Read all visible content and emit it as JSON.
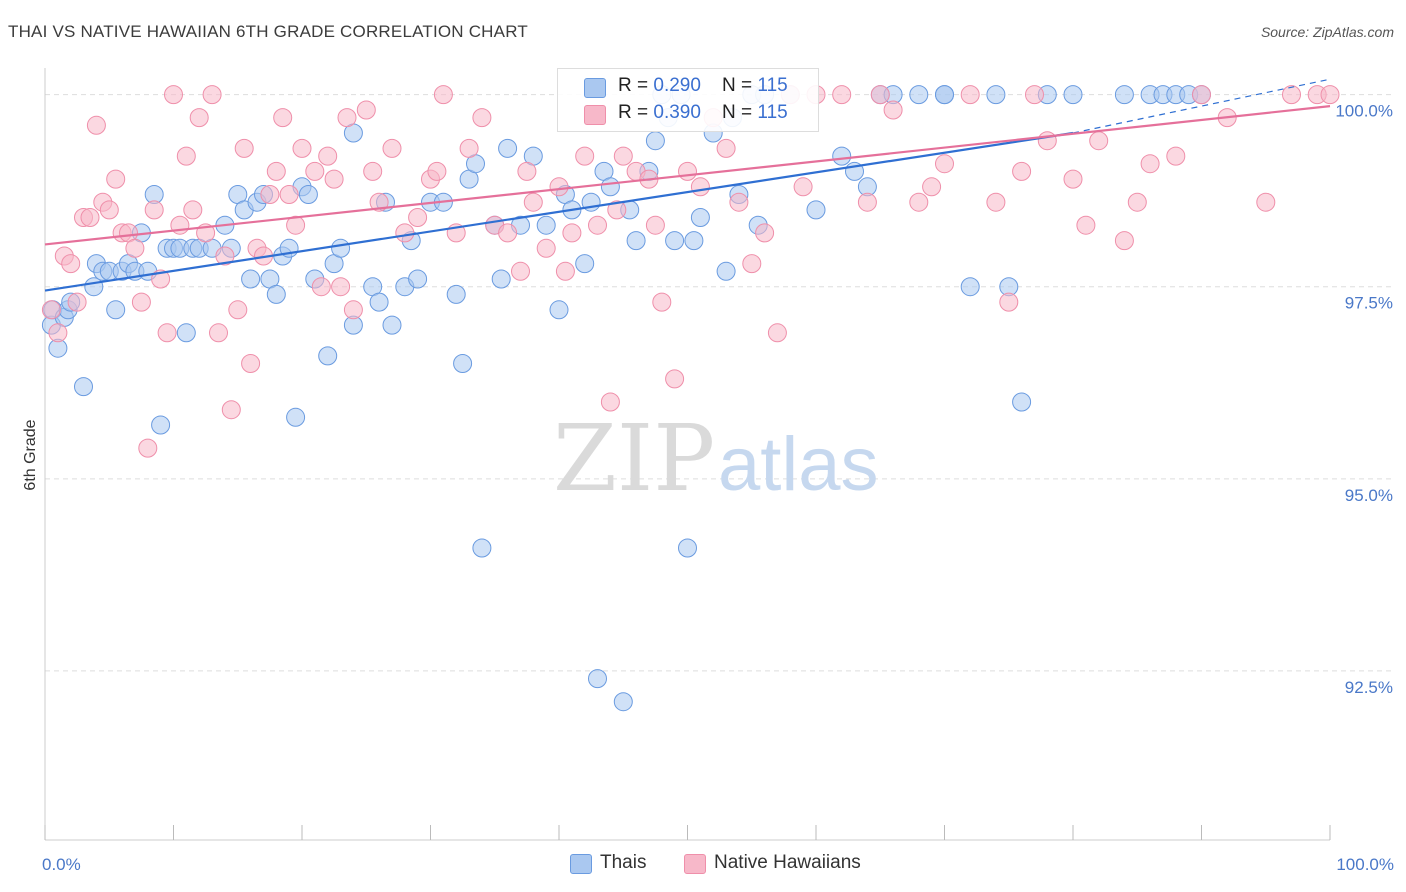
{
  "title": "THAI VS NATIVE HAWAIIAN 6TH GRADE CORRELATION CHART",
  "source": "Source: ZipAtlas.com",
  "watermark": {
    "zip": "ZIP",
    "atlas": "atlas"
  },
  "colors": {
    "thais_fill": "#aac8f0",
    "thais_stroke": "#6a9be0",
    "thais_line": "#2f6fd2",
    "hawaiians_fill": "#f7b8c9",
    "hawaiians_stroke": "#ef8faa",
    "hawaiians_line": "#e5709a",
    "grid": "#dddddd",
    "axis_text": "#4a78c8"
  },
  "legend_top": {
    "thais": {
      "r_label": "R = ",
      "r_value": "0.290",
      "n_label": "N = ",
      "n_value": "115"
    },
    "hawaiians": {
      "r_label": "R = ",
      "r_value": "0.390",
      "n_label": "N = ",
      "n_value": "115"
    }
  },
  "legend_bottom": {
    "thais": "Thais",
    "hawaiians": "Native Hawaiians"
  },
  "chart_data": {
    "type": "scatter",
    "title": "THAI VS NATIVE HAWAIIAN 6TH GRADE CORRELATION CHART",
    "xlabel": "",
    "ylabel": "6th Grade",
    "xlim": [
      0,
      100
    ],
    "ylim": [
      90.3,
      100.45
    ],
    "x_tick_labels": {
      "left": "0.0%",
      "right": "100.0%"
    },
    "y_ticks": [
      {
        "value": 100.0,
        "label": "100.0%"
      },
      {
        "value": 97.5,
        "label": "97.5%"
      },
      {
        "value": 95.0,
        "label": "95.0%"
      },
      {
        "value": 92.5,
        "label": "92.5%"
      }
    ],
    "grid": true,
    "series": [
      {
        "name": "Thais",
        "r": 0.29,
        "n": 115,
        "trend": {
          "x0": 0,
          "y0": 97.45,
          "x1": 80,
          "y1": 99.5,
          "dashed_to_x": 100,
          "dashed_to_y": 100.2
        },
        "points": [
          [
            0.5,
            97.0
          ],
          [
            0.6,
            97.2
          ],
          [
            1.0,
            96.7
          ],
          [
            1.5,
            97.1
          ],
          [
            1.8,
            97.2
          ],
          [
            2.0,
            97.3
          ],
          [
            3.0,
            96.2
          ],
          [
            3.8,
            97.5
          ],
          [
            4.0,
            97.8
          ],
          [
            4.5,
            97.7
          ],
          [
            5.0,
            97.7
          ],
          [
            5.5,
            97.2
          ],
          [
            6.0,
            97.7
          ],
          [
            6.5,
            97.8
          ],
          [
            7.0,
            97.7
          ],
          [
            7.5,
            98.2
          ],
          [
            8.0,
            97.7
          ],
          [
            8.5,
            98.7
          ],
          [
            9.0,
            95.7
          ],
          [
            9.5,
            98.0
          ],
          [
            10.0,
            98.0
          ],
          [
            10.5,
            98.0
          ],
          [
            11.0,
            96.9
          ],
          [
            11.5,
            98.0
          ],
          [
            12.0,
            98.0
          ],
          [
            13.0,
            98.0
          ],
          [
            14.0,
            98.3
          ],
          [
            14.5,
            98.0
          ],
          [
            15.0,
            98.7
          ],
          [
            15.5,
            98.5
          ],
          [
            16.0,
            97.6
          ],
          [
            16.5,
            98.6
          ],
          [
            17.0,
            98.7
          ],
          [
            17.5,
            97.6
          ],
          [
            18.0,
            97.4
          ],
          [
            18.5,
            97.9
          ],
          [
            19.0,
            98.0
          ],
          [
            19.5,
            95.8
          ],
          [
            20.0,
            98.8
          ],
          [
            20.5,
            98.7
          ],
          [
            21.0,
            97.6
          ],
          [
            22.0,
            96.6
          ],
          [
            22.5,
            97.8
          ],
          [
            23.0,
            98.0
          ],
          [
            24.0,
            97.0
          ],
          [
            24.0,
            99.5
          ],
          [
            25.5,
            97.5
          ],
          [
            26.0,
            97.3
          ],
          [
            26.5,
            98.6
          ],
          [
            27.0,
            97.0
          ],
          [
            28.0,
            97.5
          ],
          [
            28.5,
            98.1
          ],
          [
            29.0,
            97.6
          ],
          [
            30.0,
            98.6
          ],
          [
            31.0,
            98.6
          ],
          [
            32.0,
            97.4
          ],
          [
            32.5,
            96.5
          ],
          [
            33.0,
            98.9
          ],
          [
            33.5,
            99.1
          ],
          [
            34.0,
            94.1
          ],
          [
            35.0,
            98.3
          ],
          [
            35.5,
            97.6
          ],
          [
            36.0,
            99.3
          ],
          [
            37.0,
            98.3
          ],
          [
            38.0,
            99.2
          ],
          [
            39.0,
            98.3
          ],
          [
            40.0,
            97.2
          ],
          [
            40.5,
            98.7
          ],
          [
            41.0,
            98.5
          ],
          [
            42.0,
            97.8
          ],
          [
            42.5,
            98.6
          ],
          [
            43.0,
            92.4
          ],
          [
            43.5,
            99.0
          ],
          [
            44.0,
            98.8
          ],
          [
            45.0,
            92.1
          ],
          [
            45.5,
            98.5
          ],
          [
            46.0,
            98.1
          ],
          [
            47.0,
            99.0
          ],
          [
            47.5,
            99.4
          ],
          [
            48.0,
            100.0
          ],
          [
            48.5,
            99.7
          ],
          [
            49.0,
            98.1
          ],
          [
            49.5,
            100.0
          ],
          [
            50.0,
            94.1
          ],
          [
            50.5,
            98.1
          ],
          [
            51.0,
            98.4
          ],
          [
            52.0,
            99.5
          ],
          [
            53.0,
            97.7
          ],
          [
            53.5,
            99.7
          ],
          [
            54.0,
            98.7
          ],
          [
            55.0,
            100.0
          ],
          [
            55.5,
            98.3
          ],
          [
            56.0,
            100.0
          ],
          [
            58.0,
            100.0
          ],
          [
            60.0,
            98.5
          ],
          [
            62.0,
            99.2
          ],
          [
            63.0,
            99.0
          ],
          [
            64.0,
            98.8
          ],
          [
            65.0,
            100.0
          ],
          [
            66.0,
            100.0
          ],
          [
            68.0,
            100.0
          ],
          [
            70.0,
            100.0
          ],
          [
            72.0,
            97.5
          ],
          [
            74.0,
            100.0
          ],
          [
            75.0,
            97.5
          ],
          [
            76.0,
            96.0
          ],
          [
            78.0,
            100.0
          ],
          [
            80.0,
            100.0
          ],
          [
            84.0,
            100.0
          ],
          [
            86.0,
            100.0
          ],
          [
            87.0,
            100.0
          ],
          [
            88.0,
            100.0
          ],
          [
            89.0,
            100.0
          ],
          [
            90.0,
            100.0
          ],
          [
            70.0,
            100.0
          ]
        ]
      },
      {
        "name": "Native Hawaiians",
        "r": 0.39,
        "n": 115,
        "trend": {
          "x0": 0,
          "y0": 98.05,
          "x1": 100,
          "y1": 99.85
        },
        "points": [
          [
            0.5,
            97.2
          ],
          [
            1.0,
            96.9
          ],
          [
            1.5,
            97.9
          ],
          [
            2.0,
            97.8
          ],
          [
            2.5,
            97.3
          ],
          [
            3.0,
            98.4
          ],
          [
            3.5,
            98.4
          ],
          [
            4.0,
            99.6
          ],
          [
            4.5,
            98.6
          ],
          [
            5.0,
            98.5
          ],
          [
            5.5,
            98.9
          ],
          [
            6.0,
            98.2
          ],
          [
            6.5,
            98.2
          ],
          [
            7.0,
            98.0
          ],
          [
            7.5,
            97.3
          ],
          [
            8.0,
            95.4
          ],
          [
            8.5,
            98.5
          ],
          [
            9.0,
            97.6
          ],
          [
            9.5,
            96.9
          ],
          [
            10.0,
            100.0
          ],
          [
            10.5,
            98.3
          ],
          [
            11.0,
            99.2
          ],
          [
            11.5,
            98.5
          ],
          [
            12.0,
            99.7
          ],
          [
            12.5,
            98.2
          ],
          [
            13.0,
            100.0
          ],
          [
            13.5,
            96.9
          ],
          [
            14.0,
            97.9
          ],
          [
            14.5,
            95.9
          ],
          [
            15.0,
            97.2
          ],
          [
            15.5,
            99.3
          ],
          [
            16.0,
            96.5
          ],
          [
            16.5,
            98.0
          ],
          [
            17.0,
            97.9
          ],
          [
            17.5,
            98.7
          ],
          [
            18.0,
            99.0
          ],
          [
            18.5,
            99.7
          ],
          [
            19.0,
            98.7
          ],
          [
            19.5,
            98.3
          ],
          [
            20.0,
            99.3
          ],
          [
            21.0,
            99.0
          ],
          [
            21.5,
            97.5
          ],
          [
            22.0,
            99.2
          ],
          [
            22.5,
            98.9
          ],
          [
            23.0,
            97.5
          ],
          [
            23.5,
            99.7
          ],
          [
            24.0,
            97.2
          ],
          [
            25.0,
            99.8
          ],
          [
            25.5,
            99.0
          ],
          [
            26.0,
            98.6
          ],
          [
            27.0,
            99.3
          ],
          [
            28.0,
            98.2
          ],
          [
            29.0,
            98.4
          ],
          [
            30.0,
            98.9
          ],
          [
            30.5,
            99.0
          ],
          [
            31.0,
            100.0
          ],
          [
            32.0,
            98.2
          ],
          [
            33.0,
            99.3
          ],
          [
            34.0,
            99.7
          ],
          [
            35.0,
            98.3
          ],
          [
            36.0,
            98.2
          ],
          [
            37.0,
            97.7
          ],
          [
            37.5,
            99.0
          ],
          [
            38.0,
            98.6
          ],
          [
            39.0,
            98.0
          ],
          [
            40.0,
            98.8
          ],
          [
            40.5,
            97.7
          ],
          [
            41.0,
            98.2
          ],
          [
            42.0,
            99.2
          ],
          [
            43.0,
            98.3
          ],
          [
            44.0,
            96.0
          ],
          [
            44.5,
            98.5
          ],
          [
            45.0,
            99.2
          ],
          [
            46.0,
            99.0
          ],
          [
            47.0,
            98.9
          ],
          [
            47.5,
            98.3
          ],
          [
            48.0,
            97.3
          ],
          [
            49.0,
            96.3
          ],
          [
            50.0,
            99.0
          ],
          [
            51.0,
            98.8
          ],
          [
            52.0,
            99.7
          ],
          [
            53.0,
            99.3
          ],
          [
            54.0,
            98.6
          ],
          [
            55.0,
            97.8
          ],
          [
            56.0,
            98.2
          ],
          [
            57.0,
            96.9
          ],
          [
            58.0,
            100.0
          ],
          [
            59.0,
            98.8
          ],
          [
            60.0,
            100.0
          ],
          [
            62.0,
            100.0
          ],
          [
            64.0,
            98.6
          ],
          [
            66.0,
            99.8
          ],
          [
            68.0,
            98.6
          ],
          [
            69.0,
            98.8
          ],
          [
            70.0,
            99.1
          ],
          [
            72.0,
            100.0
          ],
          [
            74.0,
            98.6
          ],
          [
            75.0,
            97.3
          ],
          [
            76.0,
            99.0
          ],
          [
            78.0,
            99.4
          ],
          [
            80.0,
            98.9
          ],
          [
            81.0,
            98.3
          ],
          [
            82.0,
            99.4
          ],
          [
            84.0,
            98.1
          ],
          [
            85.0,
            98.6
          ],
          [
            86.0,
            99.1
          ],
          [
            88.0,
            99.2
          ],
          [
            90.0,
            100.0
          ],
          [
            92.0,
            99.7
          ],
          [
            95.0,
            98.6
          ],
          [
            97.0,
            100.0
          ],
          [
            99.0,
            100.0
          ],
          [
            100.0,
            100.0
          ],
          [
            65.0,
            100.0
          ],
          [
            77.0,
            100.0
          ]
        ]
      }
    ]
  }
}
